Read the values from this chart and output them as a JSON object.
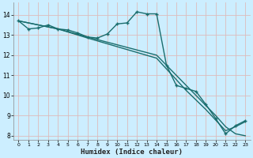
{
  "xlabel": "Humidex (Indice chaleur)",
  "bg_color": "#cceeff",
  "grid_color": "#ddbbbb",
  "line_color": "#1a6e6e",
  "xlim": [
    -0.5,
    23.5
  ],
  "ylim": [
    7.8,
    14.6
  ],
  "yticks": [
    8,
    9,
    10,
    11,
    12,
    13,
    14
  ],
  "xticks": [
    0,
    1,
    2,
    3,
    4,
    5,
    6,
    7,
    8,
    9,
    10,
    11,
    12,
    13,
    14,
    15,
    16,
    17,
    18,
    19,
    20,
    21,
    22,
    23
  ],
  "series_marked": {
    "x": [
      0,
      1,
      2,
      3,
      4,
      5,
      6,
      7,
      8,
      9,
      10,
      11,
      12,
      13,
      14,
      15,
      16,
      17,
      18,
      19,
      20,
      21,
      22,
      23
    ],
    "y": [
      13.7,
      13.3,
      13.35,
      13.5,
      13.3,
      13.25,
      13.1,
      12.9,
      12.85,
      13.05,
      13.55,
      13.6,
      14.15,
      14.05,
      14.05,
      11.5,
      10.5,
      10.35,
      10.2,
      9.55,
      8.85,
      8.1,
      8.5,
      8.75
    ]
  },
  "series_line1": {
    "x": [
      0,
      4,
      7,
      14,
      17,
      20,
      21,
      22,
      23
    ],
    "y": [
      13.7,
      13.3,
      12.9,
      12.0,
      10.5,
      9.0,
      8.45,
      8.1,
      8.0
    ]
  },
  "series_line2": {
    "x": [
      0,
      4,
      7,
      14,
      17,
      19,
      21,
      22,
      23
    ],
    "y": [
      13.7,
      13.3,
      12.85,
      11.85,
      10.25,
      9.3,
      8.25,
      8.45,
      8.7
    ]
  }
}
